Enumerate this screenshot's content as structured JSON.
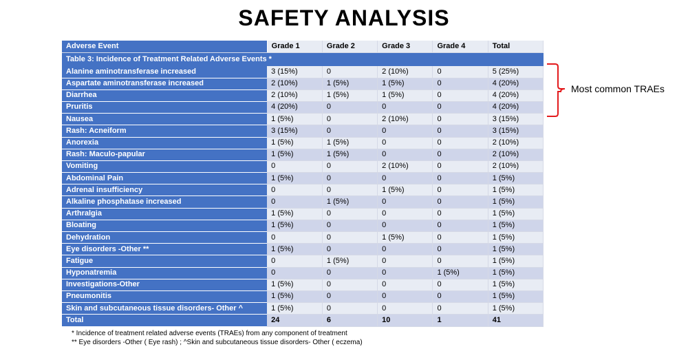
{
  "title": "SAFETY ANALYSIS",
  "table": {
    "caption": "Table 3: Incidence of Treatment Related Adverse Events *",
    "columns": [
      "Adverse Event",
      "Grade 1",
      "Grade 2",
      "Grade 3",
      "Grade 4",
      "Total"
    ],
    "rows": [
      [
        "Alanine aminotransferase increased",
        "3 (15%)",
        "0",
        "2 (10%)",
        "0",
        "5 (25%)"
      ],
      [
        "Aspartate aminotransferase increased",
        "2 (10%)",
        "1 (5%)",
        "1 (5%)",
        "0",
        "4 (20%)"
      ],
      [
        "Diarrhea",
        "2 (10%)",
        "1 (5%)",
        "1 (5%)",
        "0",
        "4 (20%)"
      ],
      [
        "Pruritis",
        "4 (20%)",
        "0",
        "0",
        "0",
        "4 (20%)"
      ],
      [
        "Nausea",
        "1 (5%)",
        "0",
        "2 (10%)",
        "0",
        "3 (15%)"
      ],
      [
        "Rash: Acneiform",
        "3 (15%)",
        "0",
        "0",
        "0",
        "3 (15%)"
      ],
      [
        "Anorexia",
        "1 (5%)",
        "1 (5%)",
        "0",
        "0",
        "2 (10%)"
      ],
      [
        "Rash: Maculo-papular",
        "1 (5%)",
        "1 (5%)",
        "0",
        "0",
        "2 (10%)"
      ],
      [
        "Vomiting",
        "0",
        "0",
        "2 (10%)",
        "0",
        "2 (10%)"
      ],
      [
        "Abdominal Pain",
        "1 (5%)",
        "0",
        "0",
        "0",
        "1 (5%)"
      ],
      [
        "Adrenal insufficiency",
        "0",
        "0",
        "1 (5%)",
        "0",
        "1 (5%)"
      ],
      [
        "Alkaline phosphatase increased",
        "0",
        "1 (5%)",
        "0",
        "0",
        "1 (5%)"
      ],
      [
        "Arthralgia",
        "1 (5%)",
        "0",
        "0",
        "0",
        "1 (5%)"
      ],
      [
        "Bloating",
        "1 (5%)",
        "0",
        "0",
        "0",
        "1 (5%)"
      ],
      [
        "Dehydration",
        "0",
        "0",
        "1 (5%)",
        "0",
        "1 (5%)"
      ],
      [
        "Eye disorders -Other **",
        "1 (5%)",
        "0",
        "0",
        "0",
        "1 (5%)"
      ],
      [
        "Fatigue",
        "0",
        "1 (5%)",
        "0",
        "0",
        "1 (5%)"
      ],
      [
        "Hyponatremia",
        "0",
        "0",
        "0",
        "1 (5%)",
        "1 (5%)"
      ],
      [
        "Investigations-Other",
        "1 (5%)",
        "0",
        "0",
        "0",
        "1 (5%)"
      ],
      [
        "Pneumonitis",
        "1 (5%)",
        "0",
        "0",
        "0",
        "1 (5%)"
      ],
      [
        "Skin and subcutaneous tissue disorders- Other ^",
        "1 (5%)",
        "0",
        "0",
        "0",
        "1 (5%)"
      ],
      [
        "Total",
        "24",
        "6",
        "10",
        "1",
        "41"
      ]
    ],
    "colors": {
      "header_bg": "#4472c4",
      "header_fg": "#ffffff",
      "row_even_bg": "#e8ecf4",
      "row_odd_bg": "#cfd5ea",
      "border": "#d5d9e6"
    }
  },
  "annotation": {
    "label": "Most common TRAEs",
    "bracket_color": "#e31a1c",
    "bracket_stroke_width": 2,
    "span_rows": [
      0,
      3
    ]
  },
  "footnotes": [
    "* Incidence of treatment related adverse events (TRAEs) from any component of treatment",
    "** Eye disorders -Other ( Eye rash) ; ^Skin and subcutaneous tissue disorders- Other ( eczema)"
  ]
}
